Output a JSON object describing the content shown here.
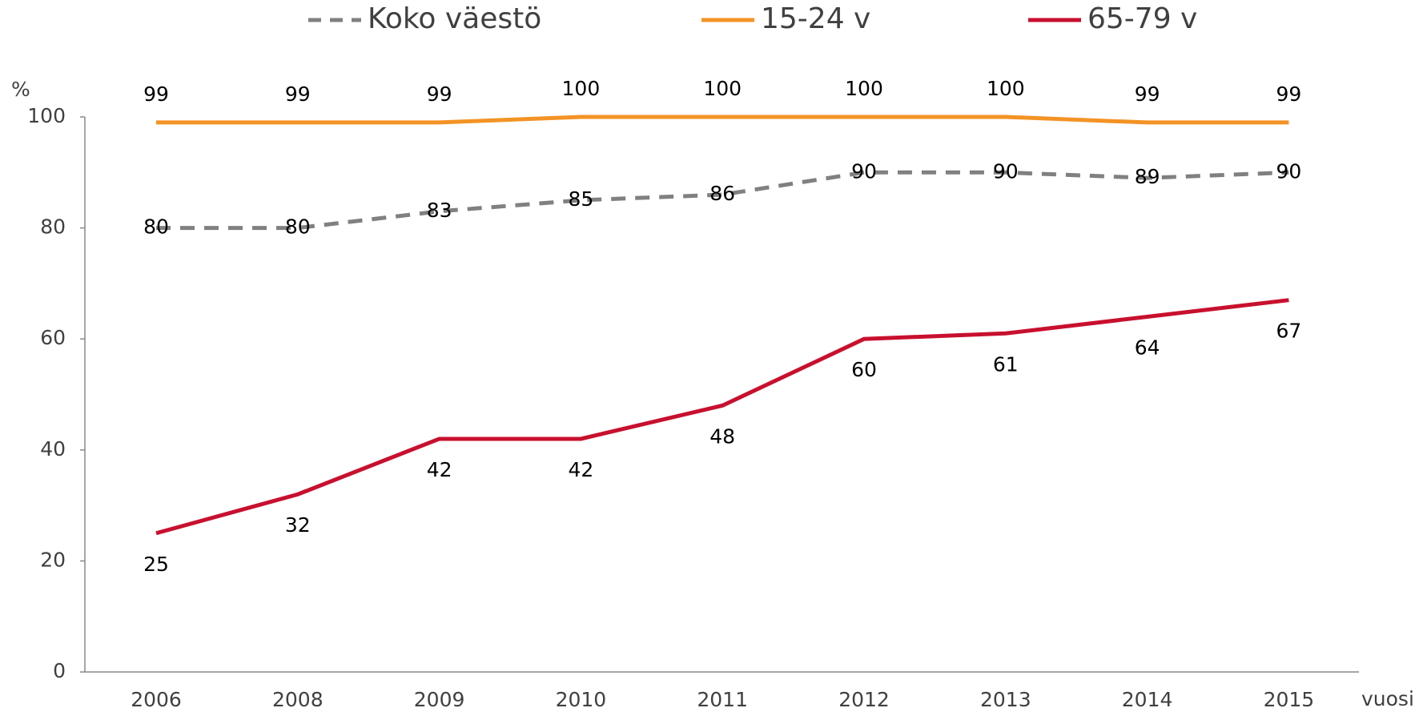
{
  "chart_data": {
    "type": "line",
    "y_label": "%",
    "x_label": "vuosi",
    "categories": [
      "2006",
      "2008",
      "2009",
      "2010",
      "2011",
      "2012",
      "2013",
      "2014",
      "2015"
    ],
    "series": [
      {
        "name": "Koko väestö",
        "color": "#808080",
        "dashed": true,
        "values": [
          80,
          80,
          83,
          85,
          86,
          90,
          90,
          89,
          90
        ]
      },
      {
        "name": "15-24 v",
        "color": "#f39325",
        "dashed": false,
        "values": [
          99,
          99,
          99,
          100,
          100,
          100,
          100,
          99,
          99
        ]
      },
      {
        "name": "65-79 v",
        "color": "#c8102e",
        "dashed": false,
        "values": [
          25,
          32,
          42,
          42,
          48,
          60,
          61,
          64,
          67
        ]
      }
    ],
    "ylim": [
      0,
      100
    ],
    "yticks": [
      0,
      20,
      40,
      60,
      80,
      100
    ],
    "grid": false,
    "legend": "top"
  }
}
